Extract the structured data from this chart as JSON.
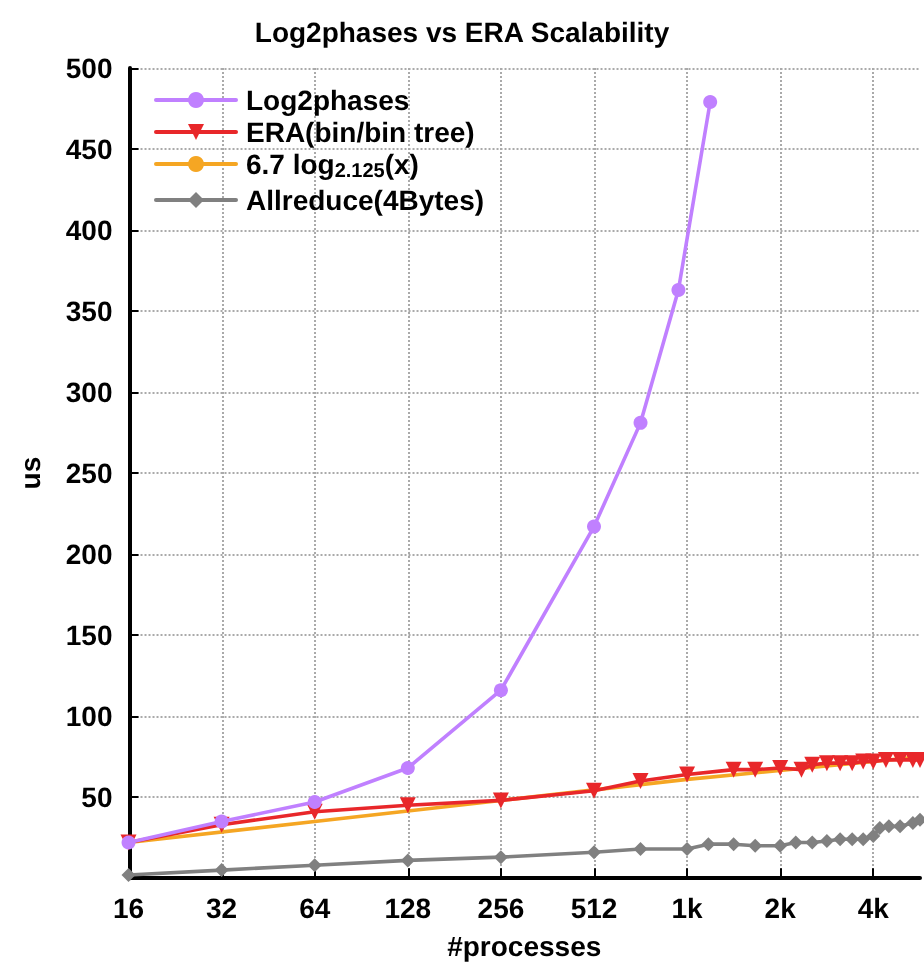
{
  "chart_data": {
    "type": "line",
    "title": "Log2phases vs ERA Scalability",
    "xlabel": "#processes",
    "ylabel": "us",
    "log": "x",
    "xlim": [
      16,
      5800
    ],
    "xticks": [
      16,
      32,
      64,
      128,
      256,
      512,
      {
        "value": 1024,
        "label": "1k"
      },
      {
        "value": 2048,
        "label": "2k"
      },
      {
        "value": 4096,
        "label": "4k"
      }
    ],
    "ylim": [
      0,
      500
    ],
    "yticks": [
      50,
      100,
      150,
      200,
      250,
      300,
      350,
      400,
      450,
      500
    ],
    "grid": true,
    "legend": "top left",
    "line_style": "solid",
    "series": [
      {
        "name": "Log2phases",
        "color": "#c080ff",
        "marker": "circle",
        "x": [
          16,
          32,
          64,
          128,
          256,
          512,
          724,
          960,
          1216
        ],
        "values": [
          22,
          35,
          47,
          68,
          116,
          217,
          281,
          363,
          479
        ]
      },
      {
        "name": "ERA(bin/bin tree)",
        "color": "#e8272a",
        "marker": "triangle",
        "x": [
          16,
          32,
          64,
          128,
          256,
          512,
          724,
          1024,
          1448,
          1700,
          2048,
          2400,
          2600,
          2900,
          3200,
          3500,
          3800,
          4096,
          4500,
          5000,
          5500,
          5800
        ],
        "values": [
          22,
          33,
          41,
          45,
          48,
          54,
          60,
          64,
          67,
          67,
          68,
          67,
          70,
          71,
          71,
          71,
          72,
          72,
          73,
          73,
          73,
          73
        ]
      },
      {
        "name": "6.7 log$_{2.125}$(x)",
        "color": "#f5a623",
        "marker": "none",
        "x": [
          16,
          64,
          256,
          1024,
          4096,
          5800
        ],
        "values": [
          22,
          35,
          48,
          61,
          72,
          75
        ]
      },
      {
        "name": "Allreduce(4Bytes)",
        "color": "#808080",
        "marker": "diamond",
        "x": [
          16,
          32,
          64,
          128,
          256,
          512,
          724,
          1024,
          1200,
          1448,
          1700,
          2048,
          2300,
          2600,
          2900,
          3200,
          3500,
          3800,
          4096,
          4300,
          4600,
          5000,
          5500,
          5800
        ],
        "values": [
          2,
          5,
          8,
          11,
          13,
          16,
          18,
          18,
          21,
          21,
          20,
          20,
          22,
          22,
          23,
          24,
          24,
          24,
          26,
          31,
          32,
          32,
          34,
          36
        ]
      }
    ]
  }
}
